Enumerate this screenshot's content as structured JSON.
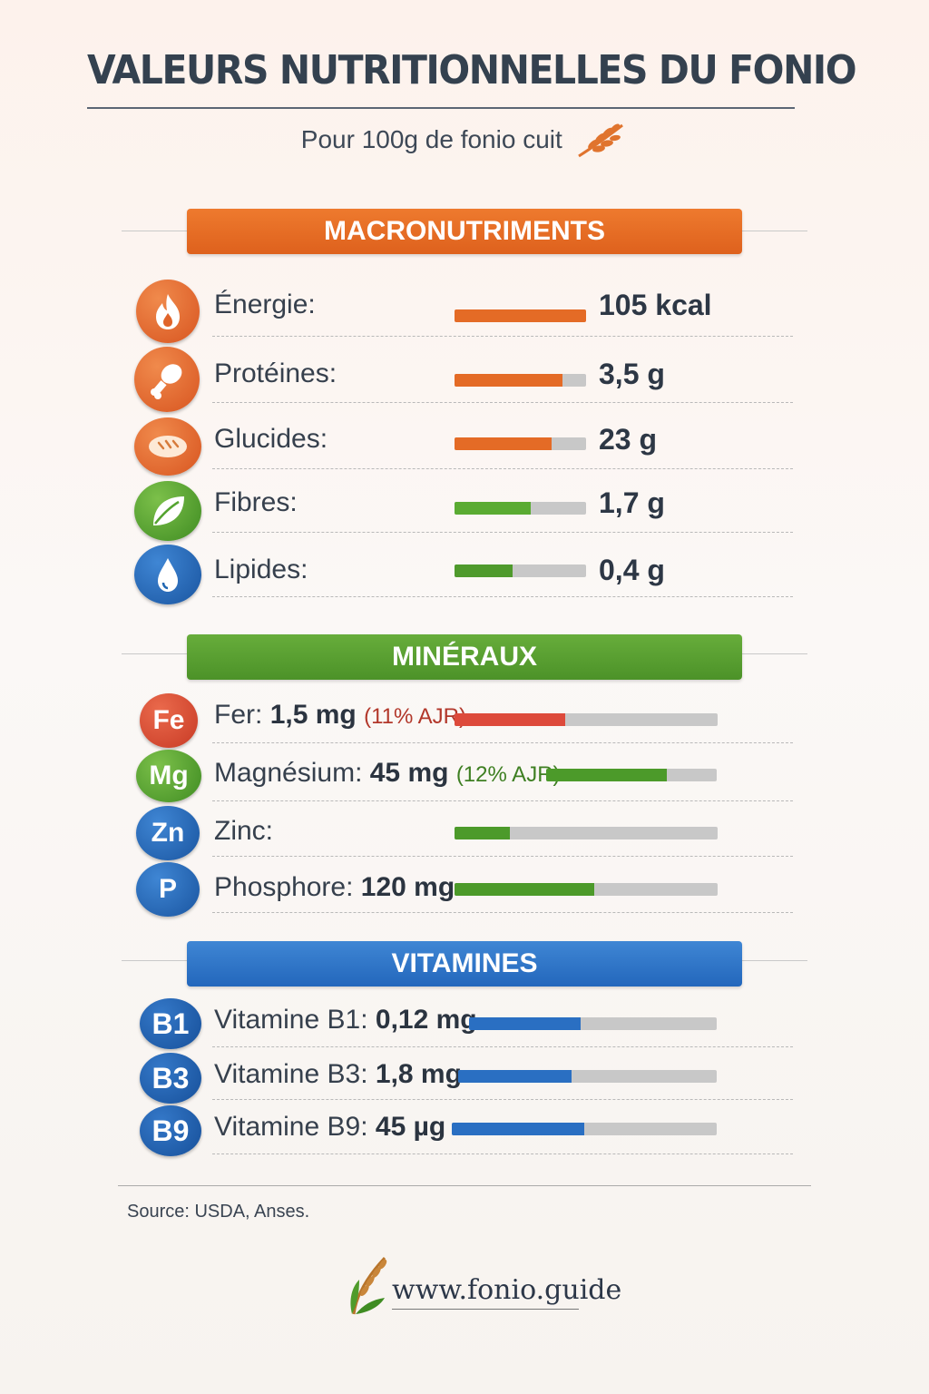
{
  "title": "VALEURS NUTRITIONNELLES DU FONIO",
  "subtitle": "Pour 100g de fonio cuit",
  "sections": {
    "macro": {
      "label": "MACRONUTRIMENTS",
      "color": "#e26b24",
      "items": [
        {
          "label": "Énergie:",
          "value": "105 kcal",
          "bar": 1.0,
          "bar_color": "#e46b26",
          "icon": "flame-icon",
          "icon_color": "#e0642a"
        },
        {
          "label": "Protéines:",
          "value": "3,5 g",
          "bar": 0.82,
          "bar_color": "#e46b26",
          "icon": "drumstick-icon",
          "icon_color": "#e0642a"
        },
        {
          "label": "Glucides:",
          "value": "23 g",
          "bar": 0.74,
          "bar_color": "#e46b26",
          "icon": "bread-icon",
          "icon_color": "#e0642a"
        },
        {
          "label": "Fibres:",
          "value": "1,7 g",
          "bar": 0.58,
          "bar_color": "#5aab32",
          "icon": "leaf-icon",
          "icon_color": "#54a330"
        },
        {
          "label": "Lipides:",
          "value": "0,4 g",
          "bar": 0.44,
          "bar_color": "#4f9a2c",
          "icon": "water-drop-icon",
          "icon_color": "#1f66b2"
        }
      ]
    },
    "minerals": {
      "label": "MINÉRAUX",
      "color": "#56a030",
      "items": [
        {
          "symbol": "Fe",
          "label": "Fer:",
          "value": "1,5 mg",
          "ajr": "(11% AJR)",
          "bar": 0.42,
          "bar_color": "#dd4a3b",
          "icon_color": "#d9472f",
          "ajr_color": "#b2372a"
        },
        {
          "symbol": "Mg",
          "label": "Magnésium:",
          "value": "45 mg",
          "ajr": "(12% AJR)",
          "bar": 0.71,
          "bar_color": "#4c9a2a",
          "icon_color": "#4f9b2b",
          "ajr_color": "#3e7f22"
        },
        {
          "symbol": "Zn",
          "label": "Zinc:",
          "value": "",
          "ajr": "",
          "bar": 0.21,
          "bar_color": "#4c9a2a",
          "icon_color": "#1e62ad",
          "ajr_color": ""
        },
        {
          "symbol": "P",
          "label": "Phosphore:",
          "value": "120 mg",
          "ajr": "",
          "bar": 0.53,
          "bar_color": "#4c9a2a",
          "icon_color": "#1e62ad",
          "ajr_color": ""
        }
      ]
    },
    "vitamins": {
      "label": "VITAMINES",
      "color": "#2c72c4",
      "items": [
        {
          "symbol": "B1",
          "label": "Vitamine B1:",
          "value": "0,12 mg",
          "bar": 0.45,
          "bar_color": "#2a6fc2",
          "icon_color": "#1e5aa6"
        },
        {
          "symbol": "B3",
          "label": "Vitamine B3:",
          "value": "1,8 mg",
          "bar": 0.44,
          "bar_color": "#2a6fc2",
          "icon_color": "#1e5aa6"
        },
        {
          "symbol": "B9",
          "label": "Vitamine B9:",
          "value": "45 µg",
          "bar": 0.5,
          "bar_color": "#2a6fc2",
          "icon_color": "#1e5aa6"
        }
      ]
    }
  },
  "footer": {
    "source": "Source: USDA, Anses.",
    "website": "www.fonio.guide"
  }
}
